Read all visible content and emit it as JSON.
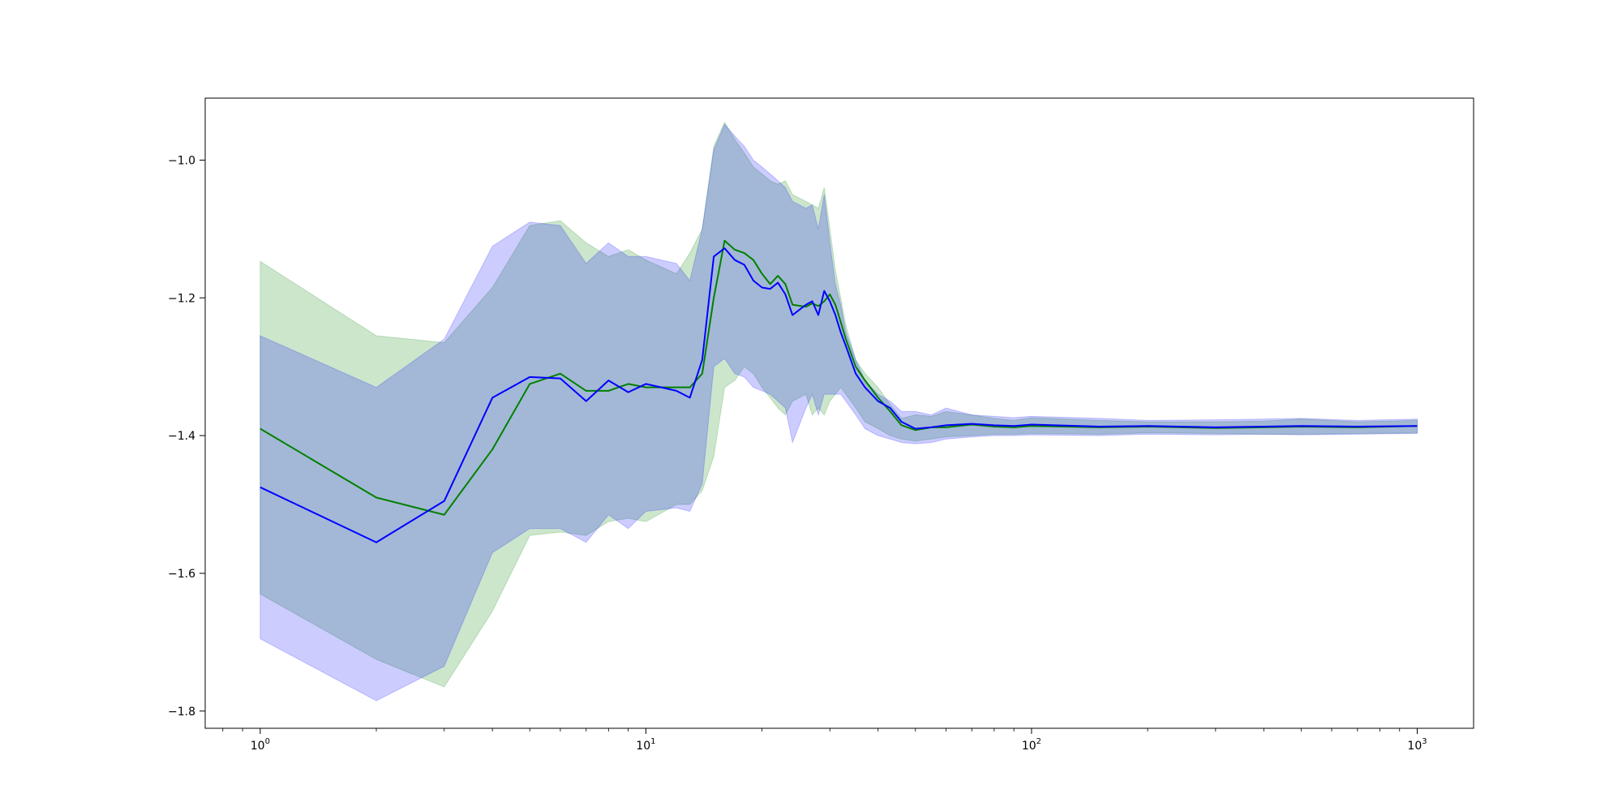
{
  "chart_data": {
    "type": "line",
    "xscale": "log",
    "xlim": [
      0.72,
      1400
    ],
    "ylim": [
      -1.825,
      -0.91
    ],
    "grid": false,
    "title": "",
    "xlabel": "",
    "ylabel": "",
    "x_ticks": [
      {
        "value": 1,
        "base": "10",
        "exp": "0"
      },
      {
        "value": 10,
        "base": "10",
        "exp": "1"
      },
      {
        "value": 100,
        "base": "10",
        "exp": "2"
      },
      {
        "value": 1000,
        "base": "10",
        "exp": "3"
      }
    ],
    "y_ticks": [
      {
        "value": -1.0,
        "label": "−1.0"
      },
      {
        "value": -1.2,
        "label": "−1.2"
      },
      {
        "value": -1.4,
        "label": "−1.4"
      },
      {
        "value": -1.6,
        "label": "−1.6"
      },
      {
        "value": -1.8,
        "label": "−1.8"
      }
    ],
    "series": [
      {
        "color": "#008000",
        "band_color": "#008000",
        "band_opacity": 0.2,
        "x": [
          1,
          2,
          3,
          4,
          5,
          6,
          7,
          8,
          9,
          10,
          12,
          13,
          14,
          15,
          16,
          17,
          18,
          19,
          20,
          21,
          22,
          23,
          24,
          26,
          27,
          28,
          29,
          30,
          31,
          32,
          33,
          35,
          37,
          40,
          43,
          46,
          50,
          55,
          60,
          70,
          80,
          90,
          100,
          150,
          200,
          300,
          400,
          500,
          700,
          1000
        ],
        "mean": [
          -1.39,
          -1.49,
          -1.515,
          -1.42,
          -1.325,
          -1.31,
          -1.335,
          -1.335,
          -1.325,
          -1.33,
          -1.33,
          -1.33,
          -1.31,
          -1.2,
          -1.117,
          -1.13,
          -1.135,
          -1.145,
          -1.165,
          -1.18,
          -1.168,
          -1.18,
          -1.21,
          -1.213,
          -1.208,
          -1.212,
          -1.205,
          -1.195,
          -1.21,
          -1.235,
          -1.26,
          -1.3,
          -1.32,
          -1.345,
          -1.365,
          -1.385,
          -1.392,
          -1.388,
          -1.388,
          -1.384,
          -1.387,
          -1.388,
          -1.386,
          -1.388,
          -1.387,
          -1.389,
          -1.388,
          -1.387,
          -1.388,
          -1.386
        ],
        "upper": [
          -1.147,
          -1.255,
          -1.265,
          -1.185,
          -1.095,
          -1.088,
          -1.12,
          -1.14,
          -1.13,
          -1.145,
          -1.165,
          -1.135,
          -1.1,
          -0.98,
          -0.945,
          -0.97,
          -0.99,
          -1.01,
          -1.02,
          -1.03,
          -1.035,
          -1.03,
          -1.05,
          -1.06,
          -1.065,
          -1.07,
          -1.04,
          -1.1,
          -1.16,
          -1.2,
          -1.24,
          -1.29,
          -1.31,
          -1.33,
          -1.355,
          -1.375,
          -1.37,
          -1.372,
          -1.365,
          -1.37,
          -1.375,
          -1.378,
          -1.374,
          -1.378,
          -1.38,
          -1.38,
          -1.379,
          -1.376,
          -1.38,
          -1.378
        ],
        "lower": [
          -1.63,
          -1.725,
          -1.765,
          -1.655,
          -1.545,
          -1.54,
          -1.545,
          -1.525,
          -1.52,
          -1.525,
          -1.5,
          -1.5,
          -1.48,
          -1.43,
          -1.33,
          -1.32,
          -1.3,
          -1.31,
          -1.33,
          -1.345,
          -1.36,
          -1.37,
          -1.35,
          -1.34,
          -1.37,
          -1.36,
          -1.37,
          -1.35,
          -1.34,
          -1.33,
          -1.34,
          -1.36,
          -1.38,
          -1.39,
          -1.4,
          -1.405,
          -1.408,
          -1.405,
          -1.402,
          -1.4,
          -1.398,
          -1.398,
          -1.397,
          -1.398,
          -1.396,
          -1.397,
          -1.398,
          -1.398,
          -1.397,
          -1.396
        ]
      },
      {
        "color": "#0000ff",
        "band_color": "#0000ff",
        "band_opacity": 0.2,
        "x": [
          1,
          2,
          3,
          4,
          5,
          6,
          7,
          8,
          9,
          10,
          12,
          13,
          14,
          15,
          16,
          17,
          18,
          19,
          20,
          21,
          22,
          23,
          24,
          26,
          27,
          28,
          29,
          30,
          31,
          32,
          33,
          35,
          37,
          40,
          43,
          46,
          50,
          55,
          60,
          70,
          80,
          90,
          100,
          150,
          200,
          300,
          400,
          500,
          700,
          1000
        ],
        "mean": [
          -1.475,
          -1.555,
          -1.495,
          -1.345,
          -1.315,
          -1.317,
          -1.35,
          -1.32,
          -1.337,
          -1.325,
          -1.335,
          -1.345,
          -1.29,
          -1.14,
          -1.128,
          -1.145,
          -1.152,
          -1.175,
          -1.185,
          -1.187,
          -1.178,
          -1.195,
          -1.225,
          -1.21,
          -1.205,
          -1.225,
          -1.19,
          -1.205,
          -1.225,
          -1.25,
          -1.27,
          -1.31,
          -1.33,
          -1.35,
          -1.36,
          -1.38,
          -1.39,
          -1.388,
          -1.385,
          -1.383,
          -1.385,
          -1.386,
          -1.384,
          -1.387,
          -1.386,
          -1.388,
          -1.387,
          -1.386,
          -1.387,
          -1.386
        ],
        "upper": [
          -1.255,
          -1.33,
          -1.26,
          -1.125,
          -1.09,
          -1.095,
          -1.15,
          -1.12,
          -1.14,
          -1.14,
          -1.15,
          -1.175,
          -1.1,
          -0.985,
          -0.948,
          -0.965,
          -0.98,
          -1.0,
          -1.01,
          -1.02,
          -1.03,
          -1.04,
          -1.06,
          -1.07,
          -1.065,
          -1.1,
          -1.05,
          -1.12,
          -1.18,
          -1.21,
          -1.25,
          -1.29,
          -1.32,
          -1.34,
          -1.35,
          -1.365,
          -1.365,
          -1.37,
          -1.36,
          -1.37,
          -1.372,
          -1.374,
          -1.372,
          -1.375,
          -1.378,
          -1.377,
          -1.376,
          -1.375,
          -1.378,
          -1.376
        ],
        "lower": [
          -1.695,
          -1.785,
          -1.735,
          -1.57,
          -1.535,
          -1.535,
          -1.555,
          -1.515,
          -1.535,
          -1.51,
          -1.505,
          -1.51,
          -1.47,
          -1.3,
          -1.288,
          -1.31,
          -1.315,
          -1.33,
          -1.335,
          -1.34,
          -1.35,
          -1.36,
          -1.41,
          -1.36,
          -1.34,
          -1.37,
          -1.34,
          -1.34,
          -1.34,
          -1.34,
          -1.35,
          -1.37,
          -1.39,
          -1.4,
          -1.405,
          -1.41,
          -1.412,
          -1.41,
          -1.405,
          -1.402,
          -1.4,
          -1.4,
          -1.399,
          -1.4,
          -1.398,
          -1.399,
          -1.398,
          -1.399,
          -1.398,
          -1.397
        ]
      }
    ]
  }
}
